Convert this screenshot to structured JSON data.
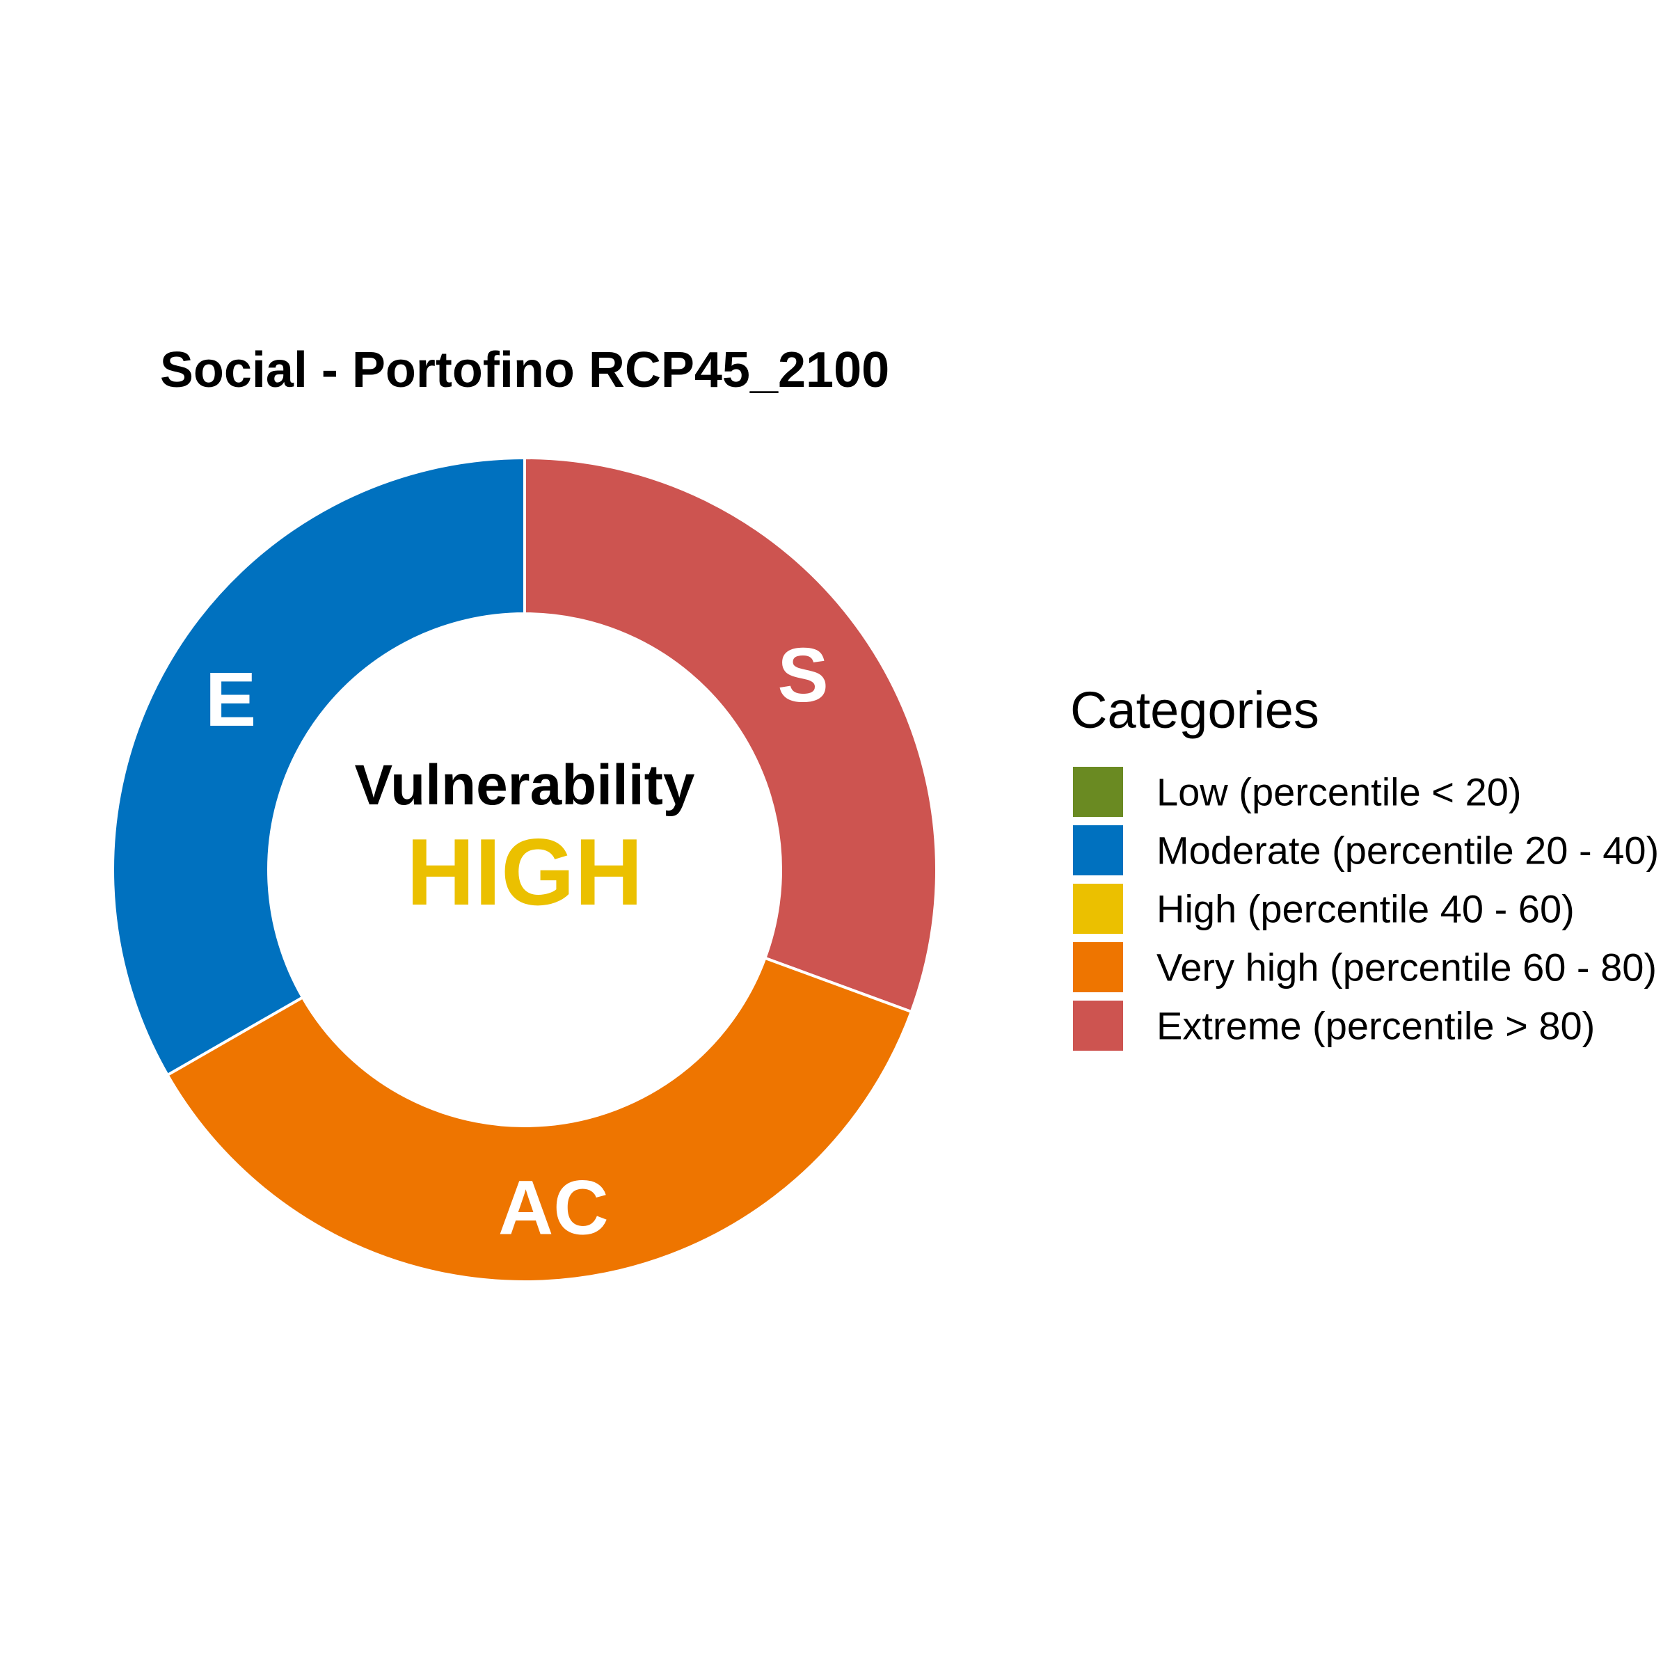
{
  "chart_data": {
    "type": "pie",
    "title": "Social - Portofino RCP45_2100",
    "center": {
      "label": "Vulnerability",
      "value": "HIGH",
      "value_color": "#EBC000"
    },
    "slices": [
      {
        "label": "S",
        "value": 30.6,
        "color": "#CD5450"
      },
      {
        "label": "AC",
        "value": 36.1,
        "color": "#EE7500"
      },
      {
        "label": "E",
        "value": 33.3,
        "color": "#0071BF"
      }
    ],
    "legend": {
      "title": "Categories",
      "position": "right",
      "items": [
        {
          "label": "Low (percentile < 20)",
          "color": "#6A8A22"
        },
        {
          "label": "Moderate (percentile 20 - 40)",
          "color": "#0071BF"
        },
        {
          "label": "High (percentile 40 - 60)",
          "color": "#EBC000"
        },
        {
          "label": "Very high (percentile 60 - 80)",
          "color": "#EE7500"
        },
        {
          "label": "Extreme (percentile > 80)",
          "color": "#CD5450"
        }
      ]
    }
  }
}
